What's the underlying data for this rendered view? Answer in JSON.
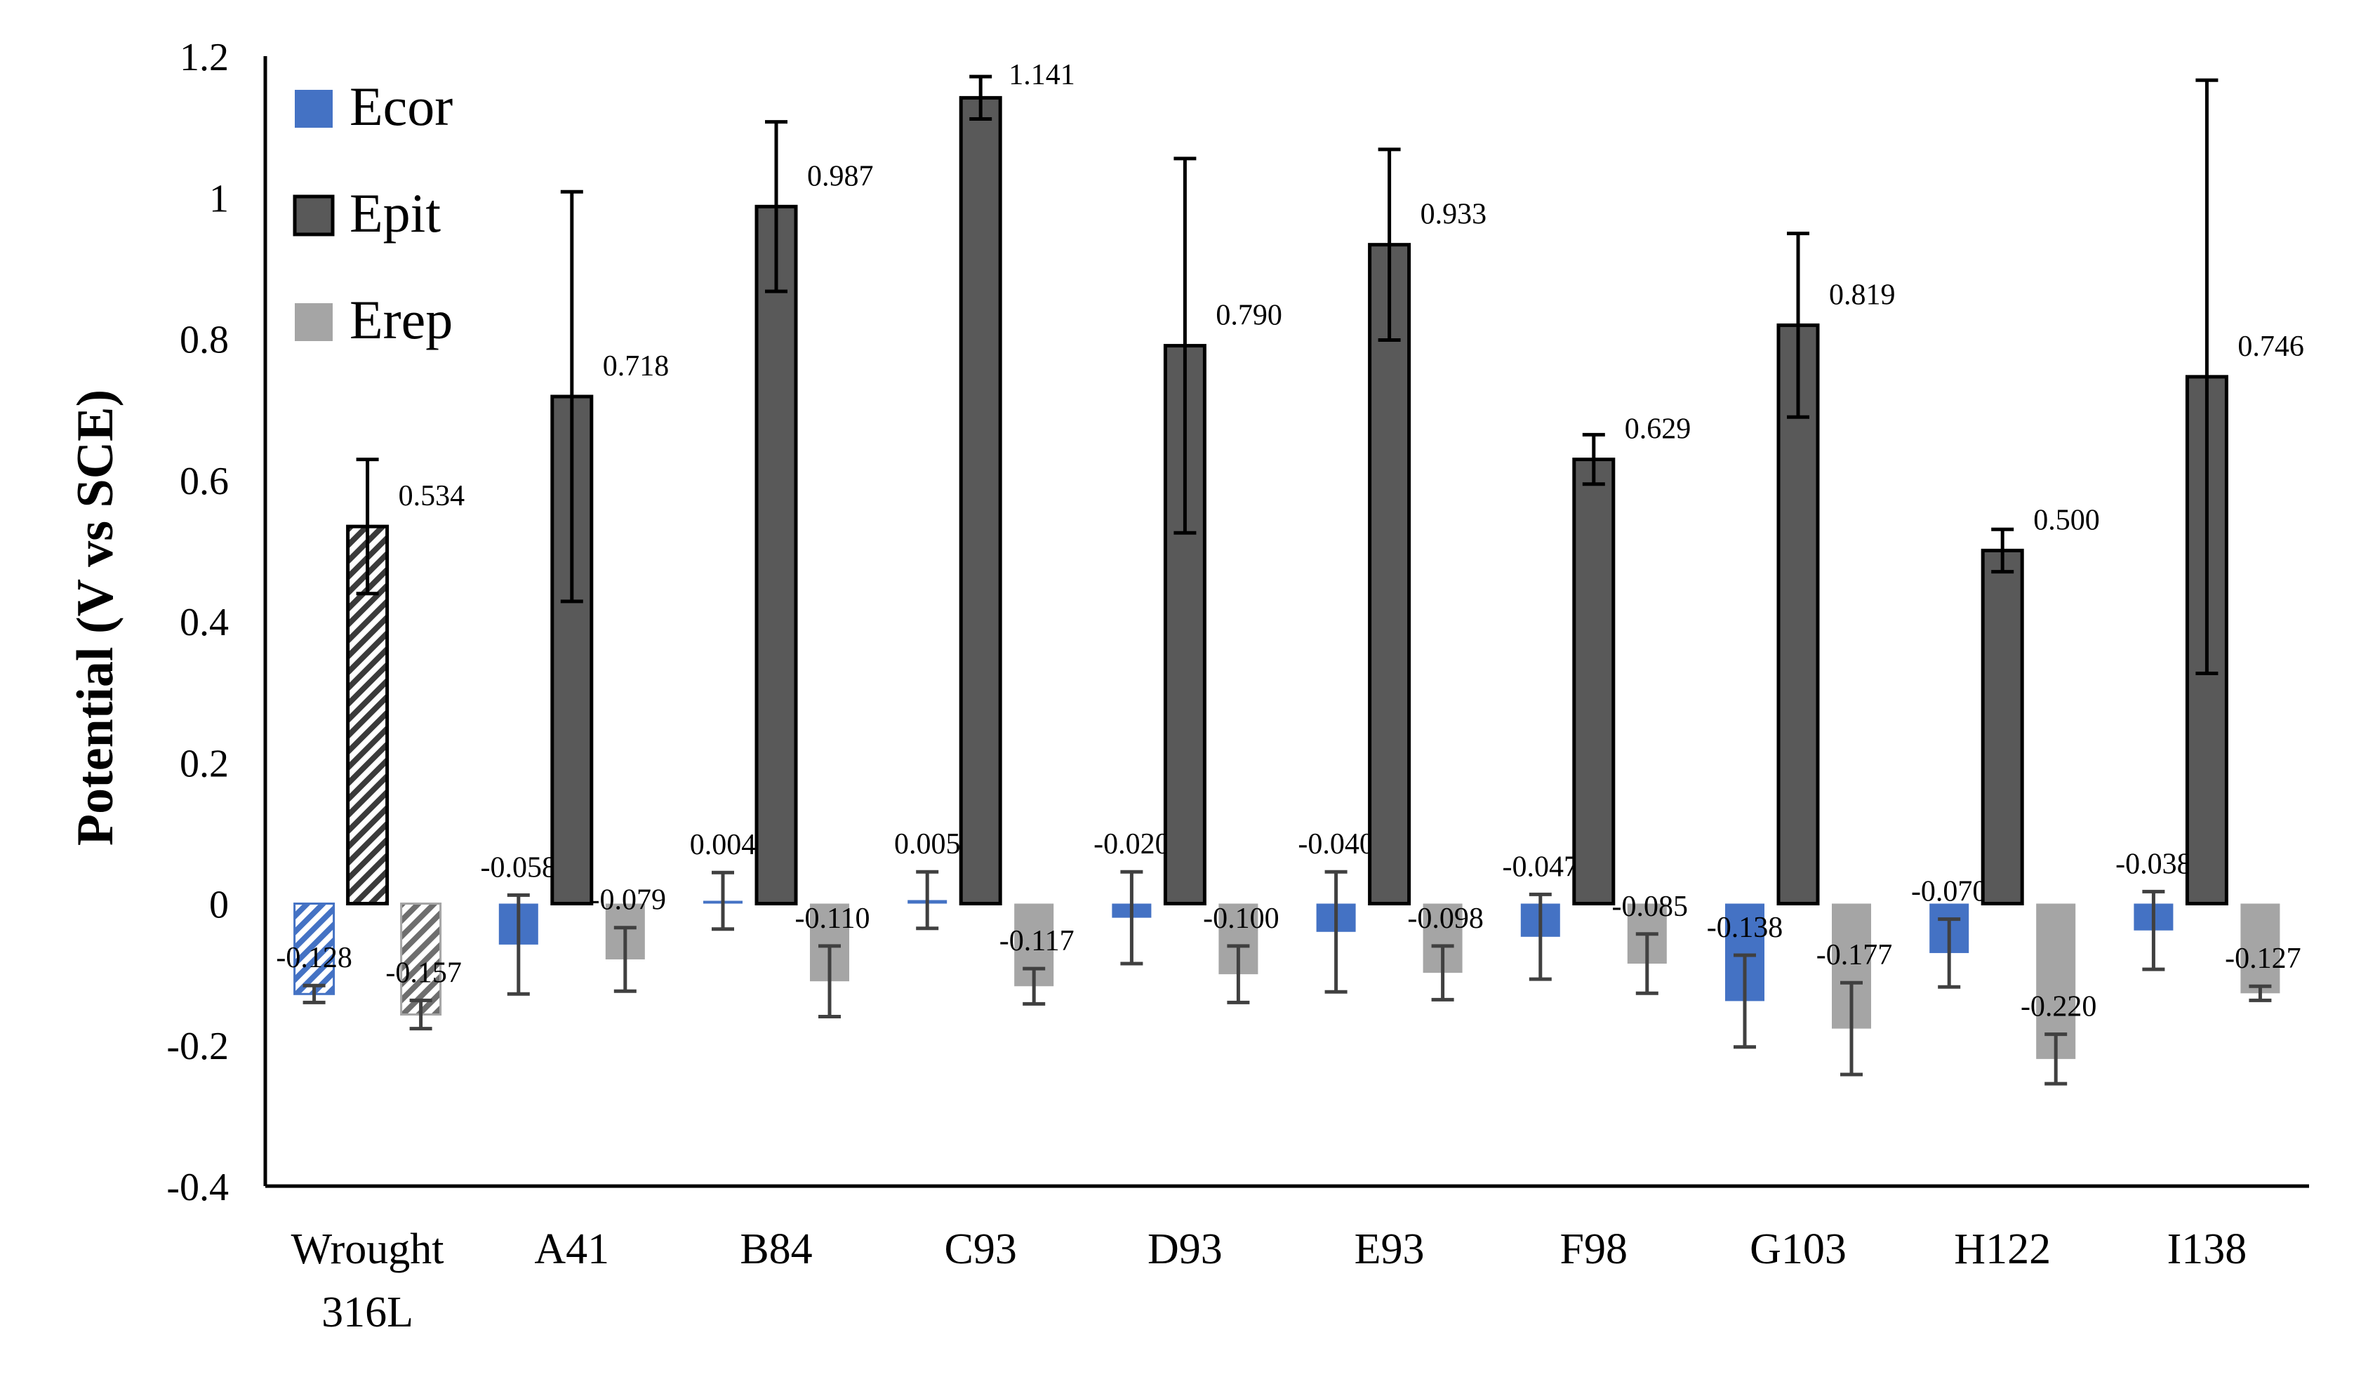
{
  "chart_data": {
    "type": "bar",
    "ylabel": "Potential (V vs SCE)",
    "xlabel": "",
    "ylim": [
      -0.4,
      1.2
    ],
    "yticks": [
      "-0.4",
      "-0.2",
      "0",
      "0.2",
      "0.4",
      "0.6",
      "0.8",
      "1",
      "1.2"
    ],
    "grid": false,
    "legend_position": "top-left",
    "categories": [
      [
        "Wrought",
        "316L"
      ],
      [
        "A41"
      ],
      [
        "B84"
      ],
      [
        "C93"
      ],
      [
        "D93"
      ],
      [
        "E93"
      ],
      [
        "F98"
      ],
      [
        "G103"
      ],
      [
        "H122"
      ],
      [
        "I138"
      ]
    ],
    "hatched_categories": [
      0
    ],
    "series": [
      {
        "name": "Ecor",
        "color": "#4472c4",
        "values": [
          -0.128,
          -0.058,
          0.004,
          0.005,
          -0.02,
          -0.04,
          -0.047,
          -0.138,
          -0.07,
          -0.038
        ],
        "labels": [
          "-0.128",
          "-0.058",
          "0.004",
          "0.005",
          "-0.020",
          "-0.040",
          "-0.047",
          "-0.138",
          "-0.070",
          "-0.038"
        ],
        "errors": [
          0.012,
          0.07,
          0.04,
          0.04,
          0.065,
          0.085,
          0.06,
          0.065,
          0.048,
          0.055
        ]
      },
      {
        "name": "Epit",
        "color": "#595959",
        "values": [
          0.534,
          0.718,
          0.987,
          1.141,
          0.79,
          0.933,
          0.629,
          0.819,
          0.5,
          0.746
        ],
        "labels": [
          "0.534",
          "0.718",
          "0.987",
          "1.141",
          "0.790",
          "0.933",
          "0.629",
          "0.819",
          "0.500",
          "0.746"
        ],
        "errors": [
          0.095,
          0.29,
          0.12,
          0.03,
          0.265,
          0.135,
          0.035,
          0.13,
          0.03,
          0.42
        ]
      },
      {
        "name": "Erep",
        "color": "#a5a5a5",
        "values": [
          -0.157,
          -0.079,
          -0.11,
          -0.117,
          -0.1,
          -0.098,
          -0.085,
          -0.177,
          -0.22,
          -0.127
        ],
        "labels": [
          "-0.157",
          "-0.079",
          "-0.110",
          "-0.117",
          "-0.100",
          "-0.098",
          "-0.085",
          "-0.177",
          "-0.220",
          "-0.127"
        ],
        "errors": [
          0.02,
          0.045,
          0.05,
          0.025,
          0.04,
          0.038,
          0.042,
          0.065,
          0.035,
          0.01
        ]
      }
    ]
  }
}
